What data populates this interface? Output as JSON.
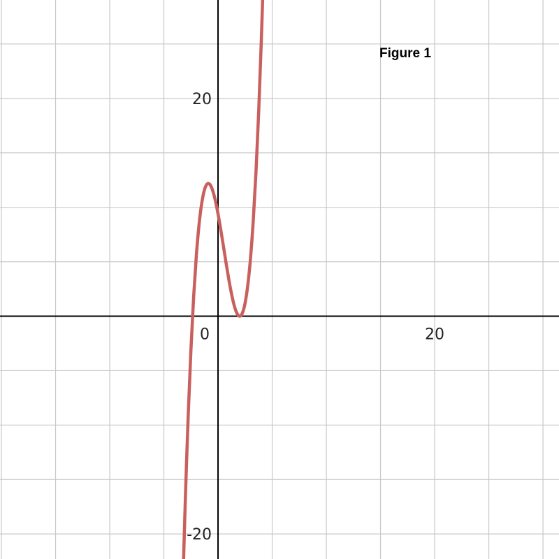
{
  "chart_data": {
    "type": "line",
    "title": "Figure 1",
    "xlabel": "",
    "ylabel": "",
    "xlim": [
      -20.13,
      31.48
    ],
    "ylim": [
      -22.3,
      29.04
    ],
    "grid": true,
    "grid_step": 5,
    "x_ticks": [
      {
        "value": 0,
        "label": "0"
      },
      {
        "value": 20,
        "label": "20"
      }
    ],
    "y_ticks": [
      {
        "value": 20,
        "label": "20"
      },
      {
        "value": -20,
        "label": "-20"
      }
    ],
    "colors": {
      "curve": "#c9605e",
      "grid": "#c8c8c8",
      "axis": "#000000"
    },
    "series": [
      {
        "x": [
          -3.2,
          -3.0,
          -2.75,
          -2.5,
          -2.25,
          -2.0,
          -1.75,
          -1.5,
          -1.25,
          -1.0,
          -0.75,
          -0.5,
          -0.25,
          0,
          0.25,
          0.5,
          0.75,
          1.0,
          1.25,
          1.5,
          1.75,
          2.0,
          2.25,
          2.5,
          2.75,
          3.0,
          3.25,
          3.5,
          3.75,
          4.0,
          4.25
        ],
        "y": [
          -22.98,
          -16.25,
          -9.03,
          -3.04,
          1.81,
          5.6,
          8.44,
          10.41,
          11.62,
          12.15,
          12.1,
          11.56,
          10.63,
          9.4,
          7.96,
          6.41,
          4.84,
          3.35,
          2.03,
          0.96,
          0.26,
          0,
          0.29,
          1.21,
          2.87,
          5.35,
          8.75,
          13.16,
          18.68,
          25.4,
          33.41
        ]
      }
    ]
  }
}
